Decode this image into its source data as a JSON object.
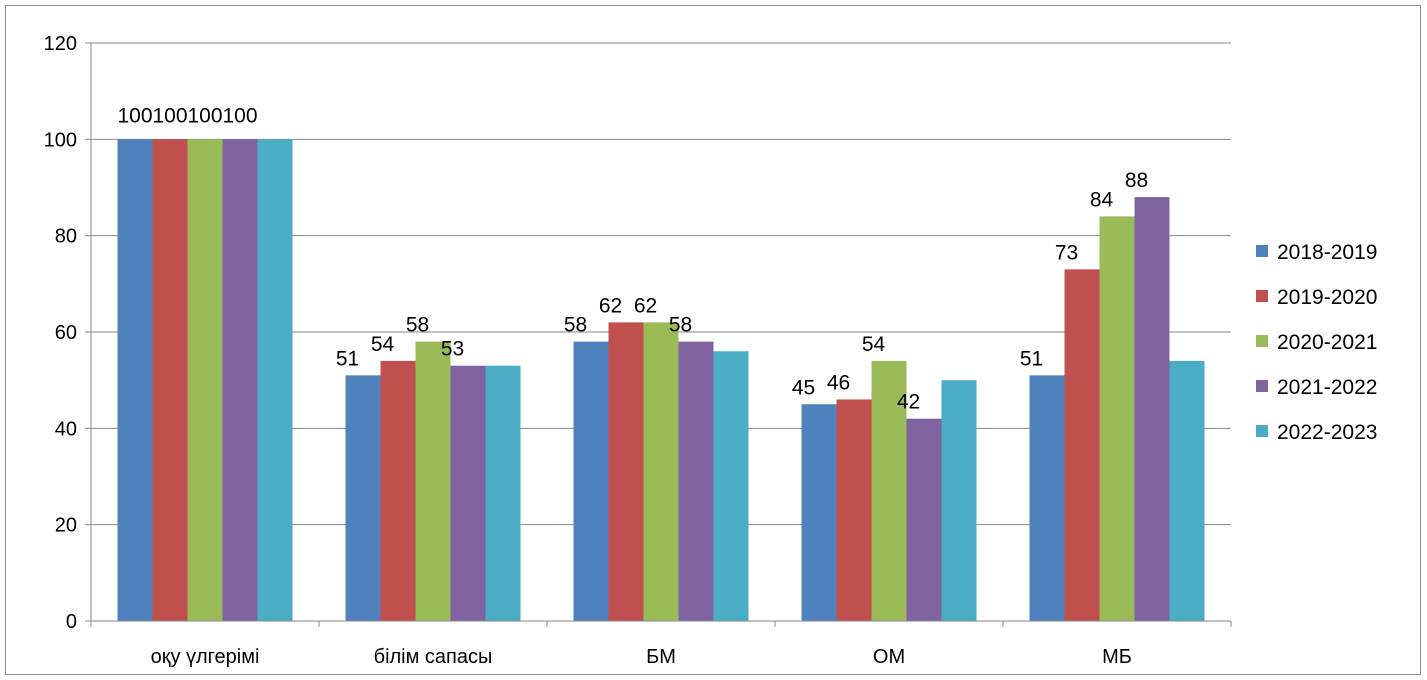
{
  "chart_data": {
    "type": "bar",
    "title": "",
    "xlabel": "",
    "ylabel": "",
    "ylim": [
      0,
      120
    ],
    "yticks": [
      0,
      20,
      40,
      60,
      80,
      100,
      120
    ],
    "grid": true,
    "legend_position": "right",
    "categories": [
      "оқу үлгерімі",
      "білім сапасы",
      "БМ",
      "ОМ",
      "МБ"
    ],
    "series": [
      {
        "name": "2018-2019",
        "color": "#4F81BD",
        "values": [
          100,
          51,
          58,
          45,
          51
        ],
        "labels": [
          "100",
          "51",
          "58",
          "45",
          "51"
        ]
      },
      {
        "name": "2019-2020",
        "color": "#C0504D",
        "values": [
          100,
          54,
          62,
          46,
          73
        ],
        "labels": [
          "100",
          "54",
          "62",
          "46",
          "73"
        ]
      },
      {
        "name": "2020-2021",
        "color": "#9BBB59",
        "values": [
          100,
          58,
          62,
          54,
          84
        ],
        "labels": [
          "100",
          "58",
          "62",
          "54",
          "84"
        ]
      },
      {
        "name": "2021-2022",
        "color": "#8064A2",
        "values": [
          100,
          53,
          58,
          42,
          88
        ],
        "labels": [
          "100",
          "53",
          "58",
          "42",
          "88"
        ]
      },
      {
        "name": "2022-2023",
        "color": "#4BACC6",
        "values": [
          100,
          53,
          56,
          50,
          54
        ],
        "labels": [
          "",
          "",
          "",
          "",
          ""
        ]
      }
    ]
  }
}
